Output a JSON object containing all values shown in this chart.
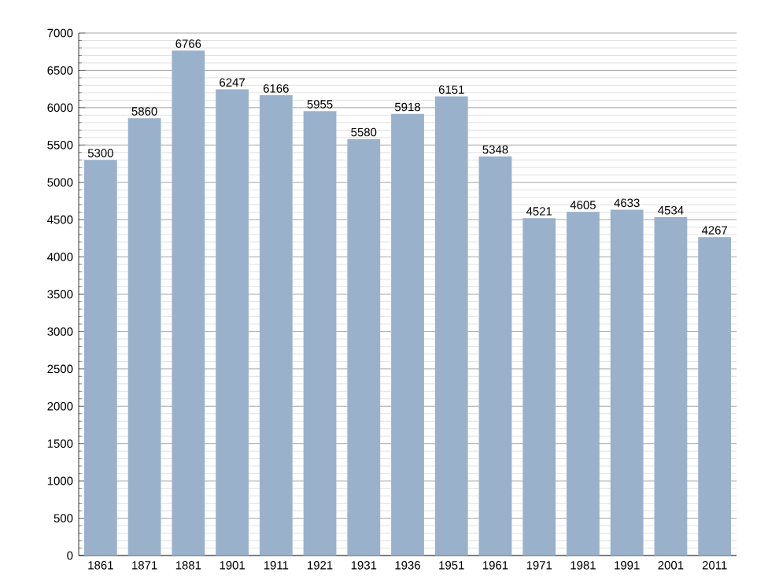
{
  "chart_data": {
    "type": "bar",
    "categories": [
      "1861",
      "1871",
      "1881",
      "1901",
      "1911",
      "1921",
      "1931",
      "1936",
      "1951",
      "1961",
      "1971",
      "1981",
      "1991",
      "2001",
      "2011"
    ],
    "values": [
      5300,
      5860,
      6766,
      6247,
      6166,
      5955,
      5580,
      5918,
      6151,
      5348,
      4521,
      4605,
      4633,
      4534,
      4267
    ],
    "color": "#9ab1cc",
    "data_labels": true,
    "grid": "y",
    "ylim": [
      0,
      7000
    ],
    "yticks": [
      0,
      500,
      1000,
      1500,
      2000,
      2500,
      3000,
      3500,
      4000,
      4500,
      5000,
      5500,
      6000,
      6500,
      7000
    ]
  }
}
